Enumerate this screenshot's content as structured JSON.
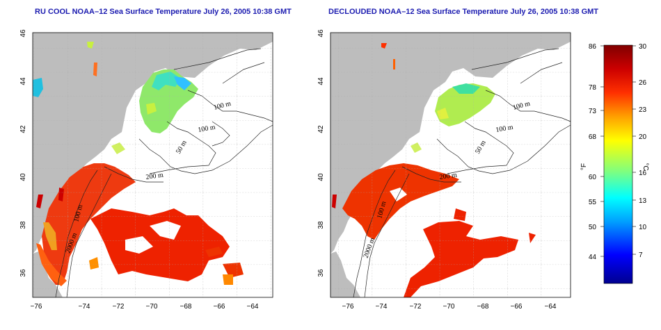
{
  "panels": [
    {
      "title": "RU COOL NOAA–12 Sea Surface Temperature July 26, 2005 10:38 GMT"
    },
    {
      "title": "DECLOUDED NOAA–12 Sea Surface Temperature July 26, 2005 10:38 GMT"
    }
  ],
  "axes": {
    "lon_ticks": [
      "−76",
      "−74",
      "−72",
      "−70",
      "−68",
      "−66",
      "−64"
    ],
    "lat_ticks": [
      "36",
      "38",
      "40",
      "42",
      "44",
      "46"
    ]
  },
  "contour_labels": {
    "left": [
      "100 m",
      "100 m",
      "50 m",
      "200 m",
      "100 m",
      "2000 m"
    ],
    "right": [
      "100 m",
      "100 m",
      "50 m",
      "200 m",
      "100 m",
      "2000 m"
    ]
  },
  "colorbar": {
    "fahrenheit_label": "°F",
    "celsius_label": "°C",
    "fahrenheit_ticks": [
      "86",
      "78",
      "73",
      "68",
      "60",
      "55",
      "50",
      "44"
    ],
    "celsius_ticks": [
      "30",
      "26",
      "23",
      "20",
      "16",
      "13",
      "10",
      "7"
    ],
    "range_celsius": [
      4,
      30
    ],
    "colors": [
      "#00008f",
      "#0000ff",
      "#00a0ff",
      "#00ffff",
      "#7fff7f",
      "#ffff00",
      "#ffa000",
      "#ff3000",
      "#cc0000",
      "#800000"
    ]
  },
  "colors": {
    "land": "#bdbdbd",
    "title": "#1b1bb0",
    "warm": "#ee2200",
    "cool": "#00c0c0"
  }
}
